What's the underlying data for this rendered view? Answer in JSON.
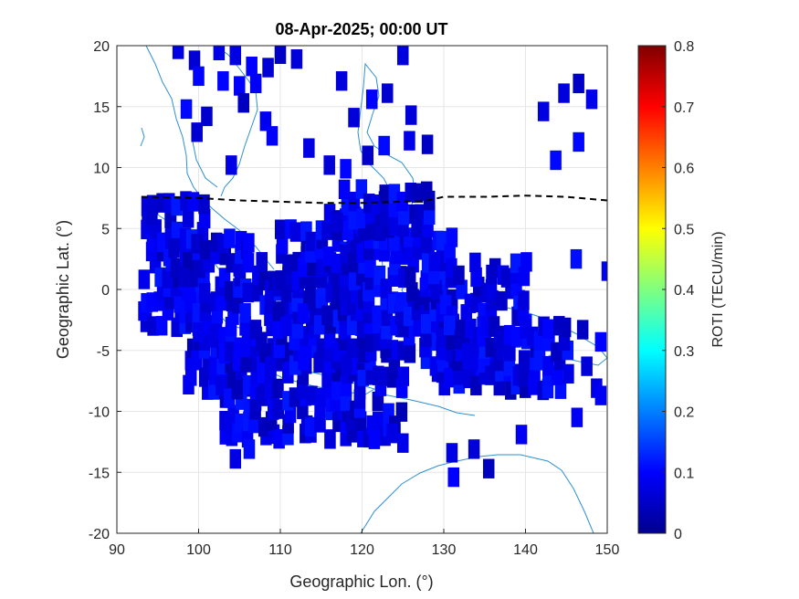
{
  "chart_data": {
    "type": "heatmap",
    "title": "08-Apr-2025; 00:00 UT",
    "xlabel": "Geographic Lon. (°)",
    "ylabel": "Geographic Lat. (°)",
    "xlim": [
      90,
      150
    ],
    "ylim": [
      -20,
      20
    ],
    "x_ticks": [
      "90",
      "100",
      "110",
      "120",
      "130",
      "140",
      "150"
    ],
    "y_ticks": [
      "20",
      "15",
      "10",
      "5",
      "0",
      "-5",
      "-10",
      "-15",
      "-20"
    ],
    "grid": true,
    "colorbar": {
      "label": "ROTI (TECU/min)",
      "range": [
        0,
        0.8
      ],
      "ticks": [
        "0.8",
        "0.7",
        "0.6",
        "0.5",
        "0.4",
        "0.3",
        "0.2",
        "0.1",
        "0"
      ],
      "colormap": "jet"
    },
    "dashed_line": {
      "color": "#000000",
      "points": [
        [
          93,
          7.6
        ],
        [
          100,
          7.5
        ],
        [
          105,
          7.3
        ],
        [
          110,
          7.2
        ],
        [
          115,
          7.1
        ],
        [
          120,
          7.1
        ],
        [
          125,
          7.2
        ],
        [
          128,
          7.3
        ],
        [
          130,
          7.6
        ],
        [
          135,
          7.6
        ],
        [
          140,
          7.7
        ],
        [
          145,
          7.6
        ],
        [
          150,
          7.3
        ]
      ]
    },
    "roti_cells": {
      "value": 0.08,
      "description_range": "mostly 0.05–0.15 TECU/min",
      "regions": [
        {
          "lon": [
            93.5,
            101
          ],
          "lat": [
            -3,
            7.5
          ]
        },
        {
          "lon": [
            99,
            106
          ],
          "lat": [
            -8,
            4
          ]
        },
        {
          "lon": [
            103,
            125
          ],
          "lat": [
            -12,
            -5
          ]
        },
        {
          "lon": [
            106,
            118
          ],
          "lat": [
            -6,
            2
          ]
        },
        {
          "lon": [
            110,
            120
          ],
          "lat": [
            -3,
            6
          ]
        },
        {
          "lon": [
            118,
            126
          ],
          "lat": [
            -5,
            6
          ]
        },
        {
          "lon": [
            124,
            131
          ],
          "lat": [
            -4,
            4
          ]
        },
        {
          "lon": [
            128,
            140
          ],
          "lat": [
            -7,
            2
          ]
        },
        {
          "lon": [
            130,
            145
          ],
          "lat": [
            -8,
            -3
          ]
        },
        {
          "lon": [
            118,
            128
          ],
          "lat": [
            5,
            8
          ]
        }
      ],
      "isolated": [
        [
          97.5,
          19.7
        ],
        [
          99.5,
          18.8
        ],
        [
          102.5,
          19.6
        ],
        [
          104.5,
          19.2
        ],
        [
          106.5,
          18.3
        ],
        [
          108.5,
          18.2
        ],
        [
          100.0,
          17.5
        ],
        [
          103.0,
          17.1
        ],
        [
          105.0,
          16.7
        ],
        [
          107.0,
          16.9
        ],
        [
          110.0,
          19.3
        ],
        [
          112.0,
          18.9
        ],
        [
          105.5,
          15.3
        ],
        [
          108.2,
          13.8
        ],
        [
          98.5,
          14.8
        ],
        [
          101.0,
          14.2
        ],
        [
          99.8,
          12.9
        ],
        [
          109.0,
          12.6
        ],
        [
          113.5,
          11.6
        ],
        [
          116.0,
          10.2
        ],
        [
          118.0,
          9.9
        ],
        [
          120.7,
          11.0
        ],
        [
          122.7,
          11.8
        ],
        [
          125.8,
          12.2
        ],
        [
          117.5,
          17.1
        ],
        [
          119.0,
          14.1
        ],
        [
          121.2,
          15.6
        ],
        [
          123.1,
          16.1
        ],
        [
          125.0,
          19.2
        ],
        [
          126.0,
          14.3
        ],
        [
          128.0,
          11.9
        ],
        [
          142.2,
          14.6
        ],
        [
          144.7,
          16.1
        ],
        [
          146.5,
          16.9
        ],
        [
          148.1,
          15.6
        ],
        [
          146.5,
          12.1
        ],
        [
          143.7,
          10.6
        ],
        [
          104.0,
          10.2
        ],
        [
          146.2,
          2.5
        ],
        [
          150.0,
          1.5
        ],
        [
          104.5,
          -13.9
        ],
        [
          106.2,
          -13.1
        ],
        [
          131.2,
          -15.4
        ],
        [
          131.0,
          -13.4
        ],
        [
          133.7,
          -13.1
        ],
        [
          135.5,
          -14.7
        ],
        [
          139.5,
          -11.9
        ],
        [
          146.3,
          -10.5
        ],
        [
          149.2,
          -4.3
        ],
        [
          147.0,
          -3.3
        ],
        [
          147.5,
          -6.3
        ],
        [
          148.7,
          -8.1
        ],
        [
          149.2,
          -8.7
        ],
        [
          121.5,
          -12.3
        ],
        [
          123.7,
          -11.8
        ],
        [
          125.0,
          -12.6
        ],
        [
          100.0,
          -3.5
        ],
        [
          97.0,
          3.4
        ],
        [
          98.2,
          1.0
        ],
        [
          117.0,
          5.5
        ]
      ]
    },
    "coastline_color": "#2f8fd0"
  }
}
